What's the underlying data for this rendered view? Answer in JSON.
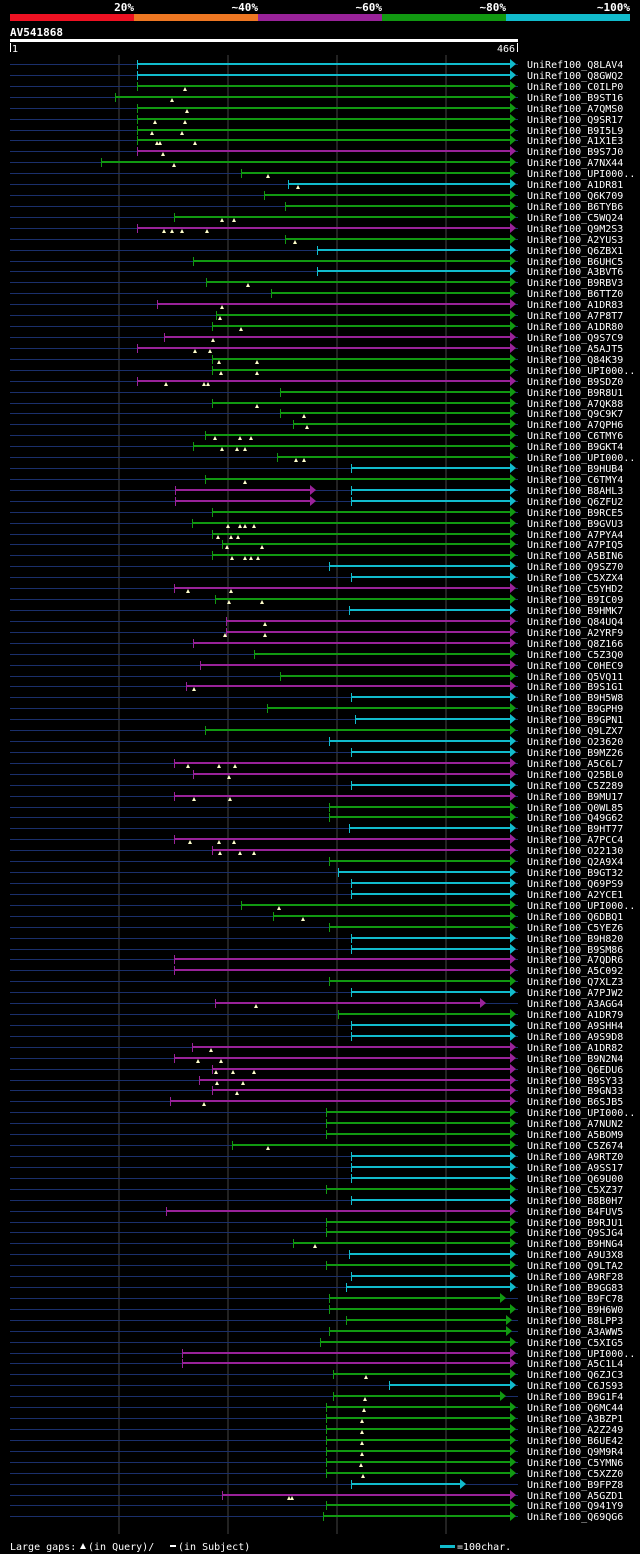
{
  "query": {
    "name": "AV541868",
    "start": "1",
    "end": "466",
    "length": 466
  },
  "identity_scale": {
    "labels": [
      "20%",
      "~40%",
      "~60%",
      "~80%",
      "~100%"
    ],
    "colors": [
      "#ee1122",
      "#ee7722",
      "#992299",
      "#119911",
      "#11bbcc"
    ]
  },
  "legend": {
    "large_gaps_label": "Large gaps:",
    "in_query": "(in Query)/",
    "in_subject": "(in Subject)",
    "scale_text": "=100char."
  },
  "hits": [
    {
      "id": "UniRef100_Q8LAV4",
      "color": "#11bbcc",
      "start": 137,
      "end": 510,
      "tri": []
    },
    {
      "id": "UniRef100_Q8GWQ2",
      "color": "#11bbcc",
      "start": 137,
      "end": 510,
      "tri": []
    },
    {
      "id": "UniRef100_C0ILP0",
      "color": "#119911",
      "start": 137,
      "end": 510,
      "tri": [
        185
      ]
    },
    {
      "id": "UniRef100_B9ST16",
      "color": "#119911",
      "start": 115,
      "end": 510,
      "tri": [
        172
      ]
    },
    {
      "id": "UniRef100_A7QMS0",
      "color": "#119911",
      "start": 137,
      "end": 510,
      "tri": [
        187
      ]
    },
    {
      "id": "UniRef100_Q9SR17",
      "color": "#119911",
      "start": 137,
      "end": 510,
      "tri": [
        155,
        185
      ]
    },
    {
      "id": "UniRef100_B9I5L9",
      "color": "#119911",
      "start": 137,
      "end": 510,
      "tri": [
        152,
        182
      ]
    },
    {
      "id": "UniRef100_A1X1E3",
      "color": "#119911",
      "start": 137,
      "end": 510,
      "tri": [
        157,
        160,
        195
      ]
    },
    {
      "id": "UniRef100_B9S7J0",
      "color": "#992299",
      "start": 137,
      "end": 510,
      "tri": [
        163
      ]
    },
    {
      "id": "UniRef100_A7NX44",
      "color": "#119911",
      "start": 101,
      "end": 510,
      "tri": [
        174
      ]
    },
    {
      "id": "UniRef100_UPI000..",
      "color": "#119911",
      "start": 241,
      "end": 510,
      "tri": [
        268
      ]
    },
    {
      "id": "UniRef100_A1DR81",
      "color": "#11bbcc",
      "start": 288,
      "end": 510,
      "tri": [
        298
      ]
    },
    {
      "id": "UniRef100_Q6K709",
      "color": "#119911",
      "start": 264,
      "end": 510,
      "tri": []
    },
    {
      "id": "UniRef100_B6TYB6",
      "color": "#119911",
      "start": 285,
      "end": 510,
      "tri": []
    },
    {
      "id": "UniRef100_C5WQ24",
      "color": "#119911",
      "start": 174,
      "end": 510,
      "tri": [
        222,
        234
      ]
    },
    {
      "id": "UniRef100_Q9M2S3",
      "color": "#992299",
      "start": 137,
      "end": 510,
      "tri": [
        164,
        172,
        182,
        207
      ]
    },
    {
      "id": "UniRef100_A2YUS3",
      "color": "#119911",
      "start": 285,
      "end": 510,
      "tri": [
        295
      ]
    },
    {
      "id": "UniRef100_Q6ZBX1",
      "color": "#11bbcc",
      "start": 317,
      "end": 510,
      "tri": []
    },
    {
      "id": "UniRef100_B6UHC5",
      "color": "#119911",
      "start": 193,
      "end": 510,
      "tri": []
    },
    {
      "id": "UniRef100_A3BVT6",
      "color": "#11bbcc",
      "start": 317,
      "end": 510,
      "tri": []
    },
    {
      "id": "UniRef100_B9RBV3",
      "color": "#119911",
      "start": 206,
      "end": 510,
      "tri": [
        248
      ]
    },
    {
      "id": "UniRef100_B6TTZ0",
      "color": "#119911",
      "start": 271,
      "end": 510,
      "tri": []
    },
    {
      "id": "UniRef100_A1DR83",
      "color": "#992299",
      "start": 157,
      "end": 510,
      "tri": [
        222
      ]
    },
    {
      "id": "UniRef100_A7P8T7",
      "color": "#119911",
      "start": 216,
      "end": 510,
      "tri": [
        220
      ]
    },
    {
      "id": "UniRef100_A1DR80",
      "color": "#119911",
      "start": 212,
      "end": 510,
      "tri": [
        241
      ]
    },
    {
      "id": "UniRef100_Q9S7C9",
      "color": "#992299",
      "start": 164,
      "end": 510,
      "tri": [
        213
      ]
    },
    {
      "id": "UniRef100_A5AJT5",
      "color": "#992299",
      "start": 137,
      "end": 510,
      "tri": [
        195,
        210
      ]
    },
    {
      "id": "UniRef100_Q84K39",
      "color": "#119911",
      "start": 212,
      "end": 510,
      "tri": [
        219,
        257
      ]
    },
    {
      "id": "UniRef100_UPI000..",
      "color": "#119911",
      "start": 212,
      "end": 510,
      "tri": [
        221,
        257
      ]
    },
    {
      "id": "UniRef100_B9SDZ0",
      "color": "#992299",
      "start": 137,
      "end": 510,
      "tri": [
        166,
        204,
        208
      ]
    },
    {
      "id": "UniRef100_B9R8U1",
      "color": "#119911",
      "start": 280,
      "end": 510,
      "tri": []
    },
    {
      "id": "UniRef100_A7QK88",
      "color": "#119911",
      "start": 212,
      "end": 510,
      "tri": [
        257
      ]
    },
    {
      "id": "UniRef100_Q9C9K7",
      "color": "#119911",
      "start": 280,
      "end": 510,
      "tri": [
        304
      ]
    },
    {
      "id": "UniRef100_A7QPH6",
      "color": "#119911",
      "start": 293,
      "end": 510,
      "tri": [
        307
      ]
    },
    {
      "id": "UniRef100_C6TMY6",
      "color": "#119911",
      "start": 205,
      "end": 510,
      "tri": [
        215,
        240,
        251
      ]
    },
    {
      "id": "UniRef100_B9GKT4",
      "color": "#119911",
      "start": 193,
      "end": 510,
      "tri": [
        222,
        237,
        245
      ]
    },
    {
      "id": "UniRef100_UPI000..",
      "color": "#119911",
      "start": 277,
      "end": 510,
      "tri": [
        296,
        304
      ]
    },
    {
      "id": "UniRef100_B9HUB4",
      "color": "#11bbcc",
      "start": 351,
      "end": 510,
      "tri": []
    },
    {
      "id": "UniRef100_C6TMY4",
      "color": "#119911",
      "start": 205,
      "end": 510,
      "tri": [
        245
      ]
    },
    {
      "id": "UniRef100_B8AHL3",
      "color": "#992299",
      "start": 175,
      "end": 310,
      "tri": [],
      "start2": 351,
      "color2": "#11bbcc"
    },
    {
      "id": "UniRef100_Q6ZFU2",
      "color": "#992299",
      "start": 175,
      "end": 310,
      "tri": [],
      "start2": 351,
      "color2": "#11bbcc"
    },
    {
      "id": "UniRef100_B9RCE5",
      "color": "#119911",
      "start": 212,
      "end": 510,
      "tri": []
    },
    {
      "id": "UniRef100_B9GVU3",
      "color": "#119911",
      "start": 192,
      "end": 510,
      "tri": [
        228,
        240,
        245,
        254
      ]
    },
    {
      "id": "UniRef100_A7PYA4",
      "color": "#119911",
      "start": 212,
      "end": 510,
      "tri": [
        218,
        231,
        238
      ]
    },
    {
      "id": "UniRef100_A7PIQ5",
      "color": "#119911",
      "start": 222,
      "end": 510,
      "tri": [
        227,
        262
      ]
    },
    {
      "id": "UniRef100_A5BIN6",
      "color": "#119911",
      "start": 212,
      "end": 510,
      "tri": [
        232,
        245,
        251,
        258
      ]
    },
    {
      "id": "UniRef100_Q9SZ70",
      "color": "#11bbcc",
      "start": 329,
      "end": 510,
      "tri": []
    },
    {
      "id": "UniRef100_C5XZX4",
      "color": "#11bbcc",
      "start": 351,
      "end": 510,
      "tri": []
    },
    {
      "id": "UniRef100_C5YHD2",
      "color": "#992299",
      "start": 174,
      "end": 510,
      "tri": [
        188,
        231
      ]
    },
    {
      "id": "UniRef100_B9IC09",
      "color": "#119911",
      "start": 215,
      "end": 510,
      "tri": [
        229,
        262
      ]
    },
    {
      "id": "UniRef100_B9HMK7",
      "color": "#11bbcc",
      "start": 349,
      "end": 510,
      "tri": []
    },
    {
      "id": "UniRef100_Q84UQ4",
      "color": "#992299",
      "start": 226,
      "end": 510,
      "tri": [
        265
      ]
    },
    {
      "id": "UniRef100_A2YRF9",
      "color": "#992299",
      "start": 226,
      "end": 510,
      "tri": [
        225,
        265
      ]
    },
    {
      "id": "UniRef100_Q8Z166",
      "color": "#992299",
      "start": 193,
      "end": 510,
      "tri": []
    },
    {
      "id": "UniRef100_C5Z3Q0",
      "color": "#119911",
      "start": 254,
      "end": 510,
      "tri": []
    },
    {
      "id": "UniRef100_C0HEC9",
      "color": "#992299",
      "start": 200,
      "end": 510,
      "tri": []
    },
    {
      "id": "UniRef100_Q5VQ11",
      "color": "#119911",
      "start": 280,
      "end": 510,
      "tri": []
    },
    {
      "id": "UniRef100_B9S1G1",
      "color": "#992299",
      "start": 186,
      "end": 510,
      "tri": [
        194
      ]
    },
    {
      "id": "UniRef100_B9H5W8",
      "color": "#11bbcc",
      "start": 351,
      "end": 510,
      "tri": []
    },
    {
      "id": "UniRef100_B9GPH9",
      "color": "#119911",
      "start": 267,
      "end": 510,
      "tri": []
    },
    {
      "id": "UniRef100_B9GPN1",
      "color": "#11bbcc",
      "start": 355,
      "end": 510,
      "tri": []
    },
    {
      "id": "UniRef100_Q9LZX7",
      "color": "#119911",
      "start": 205,
      "end": 510,
      "tri": []
    },
    {
      "id": "UniRef100_O23620",
      "color": "#11bbcc",
      "start": 329,
      "end": 510,
      "tri": []
    },
    {
      "id": "UniRef100_B9MZ26",
      "color": "#11bbcc",
      "start": 351,
      "end": 510,
      "tri": []
    },
    {
      "id": "UniRef100_A5C6L7",
      "color": "#992299",
      "start": 174,
      "end": 510,
      "tri": [
        188,
        219,
        235
      ]
    },
    {
      "id": "UniRef100_Q25BL0",
      "color": "#992299",
      "start": 193,
      "end": 510,
      "tri": [
        229
      ]
    },
    {
      "id": "UniRef100_C5Z289",
      "color": "#11bbcc",
      "start": 351,
      "end": 510,
      "tri": []
    },
    {
      "id": "UniRef100_B9MU17",
      "color": "#992299",
      "start": 174,
      "end": 510,
      "tri": [
        194,
        230
      ]
    },
    {
      "id": "UniRef100_Q0WL85",
      "color": "#119911",
      "start": 329,
      "end": 510,
      "tri": []
    },
    {
      "id": "UniRef100_Q49G62",
      "color": "#119911",
      "start": 329,
      "end": 510,
      "tri": []
    },
    {
      "id": "UniRef100_B9HT77",
      "color": "#11bbcc",
      "start": 349,
      "end": 510,
      "tri": []
    },
    {
      "id": "UniRef100_A7PCC4",
      "color": "#992299",
      "start": 174,
      "end": 510,
      "tri": [
        190,
        219,
        234
      ]
    },
    {
      "id": "UniRef100_O22130",
      "color": "#992299",
      "start": 212,
      "end": 510,
      "tri": [
        220,
        240,
        254
      ]
    },
    {
      "id": "UniRef100_Q2A9X4",
      "color": "#119911",
      "start": 329,
      "end": 510,
      "tri": []
    },
    {
      "id": "UniRef100_B9GT32",
      "color": "#11bbcc",
      "start": 338,
      "end": 510,
      "tri": []
    },
    {
      "id": "UniRef100_Q69PS9",
      "color": "#11bbcc",
      "start": 351,
      "end": 510,
      "tri": []
    },
    {
      "id": "UniRef100_A2YCE1",
      "color": "#11bbcc",
      "start": 351,
      "end": 510,
      "tri": []
    },
    {
      "id": "UniRef100_UPI000..",
      "color": "#119911",
      "start": 241,
      "end": 510,
      "tri": [
        279
      ]
    },
    {
      "id": "UniRef100_Q6DBQ1",
      "color": "#119911",
      "start": 273,
      "end": 510,
      "tri": [
        303
      ]
    },
    {
      "id": "UniRef100_C5YEZ6",
      "color": "#119911",
      "start": 329,
      "end": 510,
      "tri": []
    },
    {
      "id": "UniRef100_B9H820",
      "color": "#11bbcc",
      "start": 351,
      "end": 510,
      "tri": []
    },
    {
      "id": "UniRef100_B9SM86",
      "color": "#11bbcc",
      "start": 351,
      "end": 510,
      "tri": []
    },
    {
      "id": "UniRef100_A7QDR6",
      "color": "#992299",
      "start": 174,
      "end": 510,
      "tri": []
    },
    {
      "id": "UniRef100_A5C092",
      "color": "#992299",
      "start": 174,
      "end": 510,
      "tri": []
    },
    {
      "id": "UniRef100_Q7XLZ3",
      "color": "#119911",
      "start": 329,
      "end": 510,
      "tri": []
    },
    {
      "id": "UniRef100_A7PJW2",
      "color": "#11bbcc",
      "start": 351,
      "end": 510,
      "tri": []
    },
    {
      "id": "UniRef100_A3AGG4",
      "color": "#992299",
      "start": 215,
      "end": 480,
      "tri": [
        256
      ]
    },
    {
      "id": "UniRef100_A1DR79",
      "color": "#119911",
      "start": 338,
      "end": 510,
      "tri": []
    },
    {
      "id": "UniRef100_A9SHH4",
      "color": "#11bbcc",
      "start": 351,
      "end": 510,
      "tri": []
    },
    {
      "id": "UniRef100_A9S9D8",
      "color": "#11bbcc",
      "start": 351,
      "end": 510,
      "tri": []
    },
    {
      "id": "UniRef100_A1DR82",
      "color": "#992299",
      "start": 192,
      "end": 510,
      "tri": [
        211
      ]
    },
    {
      "id": "UniRef100_B9N2N4",
      "color": "#992299",
      "start": 174,
      "end": 510,
      "tri": [
        198,
        221
      ]
    },
    {
      "id": "UniRef100_Q6EDU6",
      "color": "#992299",
      "start": 212,
      "end": 510,
      "tri": [
        216,
        233,
        254
      ]
    },
    {
      "id": "UniRef100_B9SY33",
      "color": "#992299",
      "start": 199,
      "end": 510,
      "tri": [
        217,
        243
      ]
    },
    {
      "id": "UniRef100_B9GN33",
      "color": "#992299",
      "start": 212,
      "end": 510,
      "tri": [
        237
      ]
    },
    {
      "id": "UniRef100_B6SJB5",
      "color": "#992299",
      "start": 170,
      "end": 510,
      "tri": [
        204
      ]
    },
    {
      "id": "UniRef100_UPI000..",
      "color": "#119911",
      "start": 326,
      "end": 510,
      "tri": []
    },
    {
      "id": "UniRef100_A7NUN2",
      "color": "#119911",
      "start": 326,
      "end": 510,
      "tri": []
    },
    {
      "id": "UniRef100_A5BOM9",
      "color": "#119911",
      "start": 326,
      "end": 510,
      "tri": []
    },
    {
      "id": "UniRef100_C5Z674",
      "color": "#119911",
      "start": 232,
      "end": 510,
      "tri": [
        268
      ]
    },
    {
      "id": "UniRef100_A9RTZ0",
      "color": "#11bbcc",
      "start": 351,
      "end": 510,
      "tri": []
    },
    {
      "id": "UniRef100_A9SS17",
      "color": "#11bbcc",
      "start": 351,
      "end": 510,
      "tri": []
    },
    {
      "id": "UniRef100_Q69U00",
      "color": "#11bbcc",
      "start": 351,
      "end": 510,
      "tri": []
    },
    {
      "id": "UniRef100_C5XZ37",
      "color": "#119911",
      "start": 326,
      "end": 510,
      "tri": []
    },
    {
      "id": "UniRef100_B8B0H7",
      "color": "#11bbcc",
      "start": 351,
      "end": 510,
      "tri": []
    },
    {
      "id": "UniRef100_B4FUV5",
      "color": "#992299",
      "start": 166,
      "end": 510,
      "tri": []
    },
    {
      "id": "UniRef100_B9RJU1",
      "color": "#119911",
      "start": 326,
      "end": 510,
      "tri": []
    },
    {
      "id": "UniRef100_Q9SJG4",
      "color": "#119911",
      "start": 326,
      "end": 510,
      "tri": []
    },
    {
      "id": "UniRef100_B9HNG4",
      "color": "#119911",
      "start": 293,
      "end": 510,
      "tri": [
        315
      ]
    },
    {
      "id": "UniRef100_A9U3X8",
      "color": "#11bbcc",
      "start": 349,
      "end": 510,
      "tri": []
    },
    {
      "id": "UniRef100_Q9LTA2",
      "color": "#119911",
      "start": 326,
      "end": 510,
      "tri": []
    },
    {
      "id": "UniRef100_A9RF28",
      "color": "#11bbcc",
      "start": 351,
      "end": 510,
      "tri": []
    },
    {
      "id": "UniRef100_B9GG83",
      "color": "#11bbcc",
      "start": 346,
      "end": 510,
      "tri": []
    },
    {
      "id": "UniRef100_B9FC78",
      "color": "#119911",
      "start": 329,
      "end": 500,
      "tri": []
    },
    {
      "id": "UniRef100_B9H6W0",
      "color": "#119911",
      "start": 329,
      "end": 510,
      "tri": []
    },
    {
      "id": "UniRef100_B8LPP3",
      "color": "#119911",
      "start": 346,
      "end": 506,
      "tri": []
    },
    {
      "id": "UniRef100_A3AWW5",
      "color": "#119911",
      "start": 329,
      "end": 506,
      "tri": []
    },
    {
      "id": "UniRef100_C5XIG5",
      "color": "#119911",
      "start": 320,
      "end": 510,
      "tri": []
    },
    {
      "id": "UniRef100_UPI000..",
      "color": "#992299",
      "start": 182,
      "end": 510,
      "tri": []
    },
    {
      "id": "UniRef100_A5C1L4",
      "color": "#992299",
      "start": 182,
      "end": 510,
      "tri": []
    },
    {
      "id": "UniRef100_Q6ZJC3",
      "color": "#119911",
      "start": 333,
      "end": 510,
      "tri": [
        366
      ]
    },
    {
      "id": "UniRef100_C6JS93",
      "color": "#11bbcc",
      "start": 389,
      "end": 510,
      "tri": []
    },
    {
      "id": "UniRef100_B9G1F4",
      "color": "#119911",
      "start": 333,
      "end": 500,
      "tri": [
        365
      ]
    },
    {
      "id": "UniRef100_Q6MC44",
      "color": "#119911",
      "start": 326,
      "end": 510,
      "tri": [
        364
      ]
    },
    {
      "id": "UniRef100_A3BZP1",
      "color": "#119911",
      "start": 326,
      "end": 510,
      "tri": [
        362
      ]
    },
    {
      "id": "UniRef100_A2Z249",
      "color": "#119911",
      "start": 326,
      "end": 510,
      "tri": [
        362
      ]
    },
    {
      "id": "UniRef100_B6UE42",
      "color": "#119911",
      "start": 326,
      "end": 510,
      "tri": [
        362
      ]
    },
    {
      "id": "UniRef100_Q9M9R4",
      "color": "#119911",
      "start": 326,
      "end": 510,
      "tri": [
        362
      ]
    },
    {
      "id": "UniRef100_C5YMN6",
      "color": "#119911",
      "start": 326,
      "end": 510,
      "tri": [
        361
      ]
    },
    {
      "id": "UniRef100_C5XZZ0",
      "color": "#119911",
      "start": 326,
      "end": 510,
      "tri": [
        363
      ]
    },
    {
      "id": "UniRef100_B9FPZ8",
      "color": "#11bbcc",
      "start": 351,
      "end": 460,
      "tri": []
    },
    {
      "id": "UniRef100_A5GZD1",
      "color": "#992299",
      "start": 222,
      "end": 510,
      "tri": [
        289,
        292
      ]
    },
    {
      "id": "UniRef100_Q941Y9",
      "color": "#119911",
      "start": 326,
      "end": 510,
      "tri": []
    },
    {
      "id": "UniRef100_Q69QG6",
      "color": "#119911",
      "start": 323,
      "end": 510,
      "tri": []
    }
  ]
}
